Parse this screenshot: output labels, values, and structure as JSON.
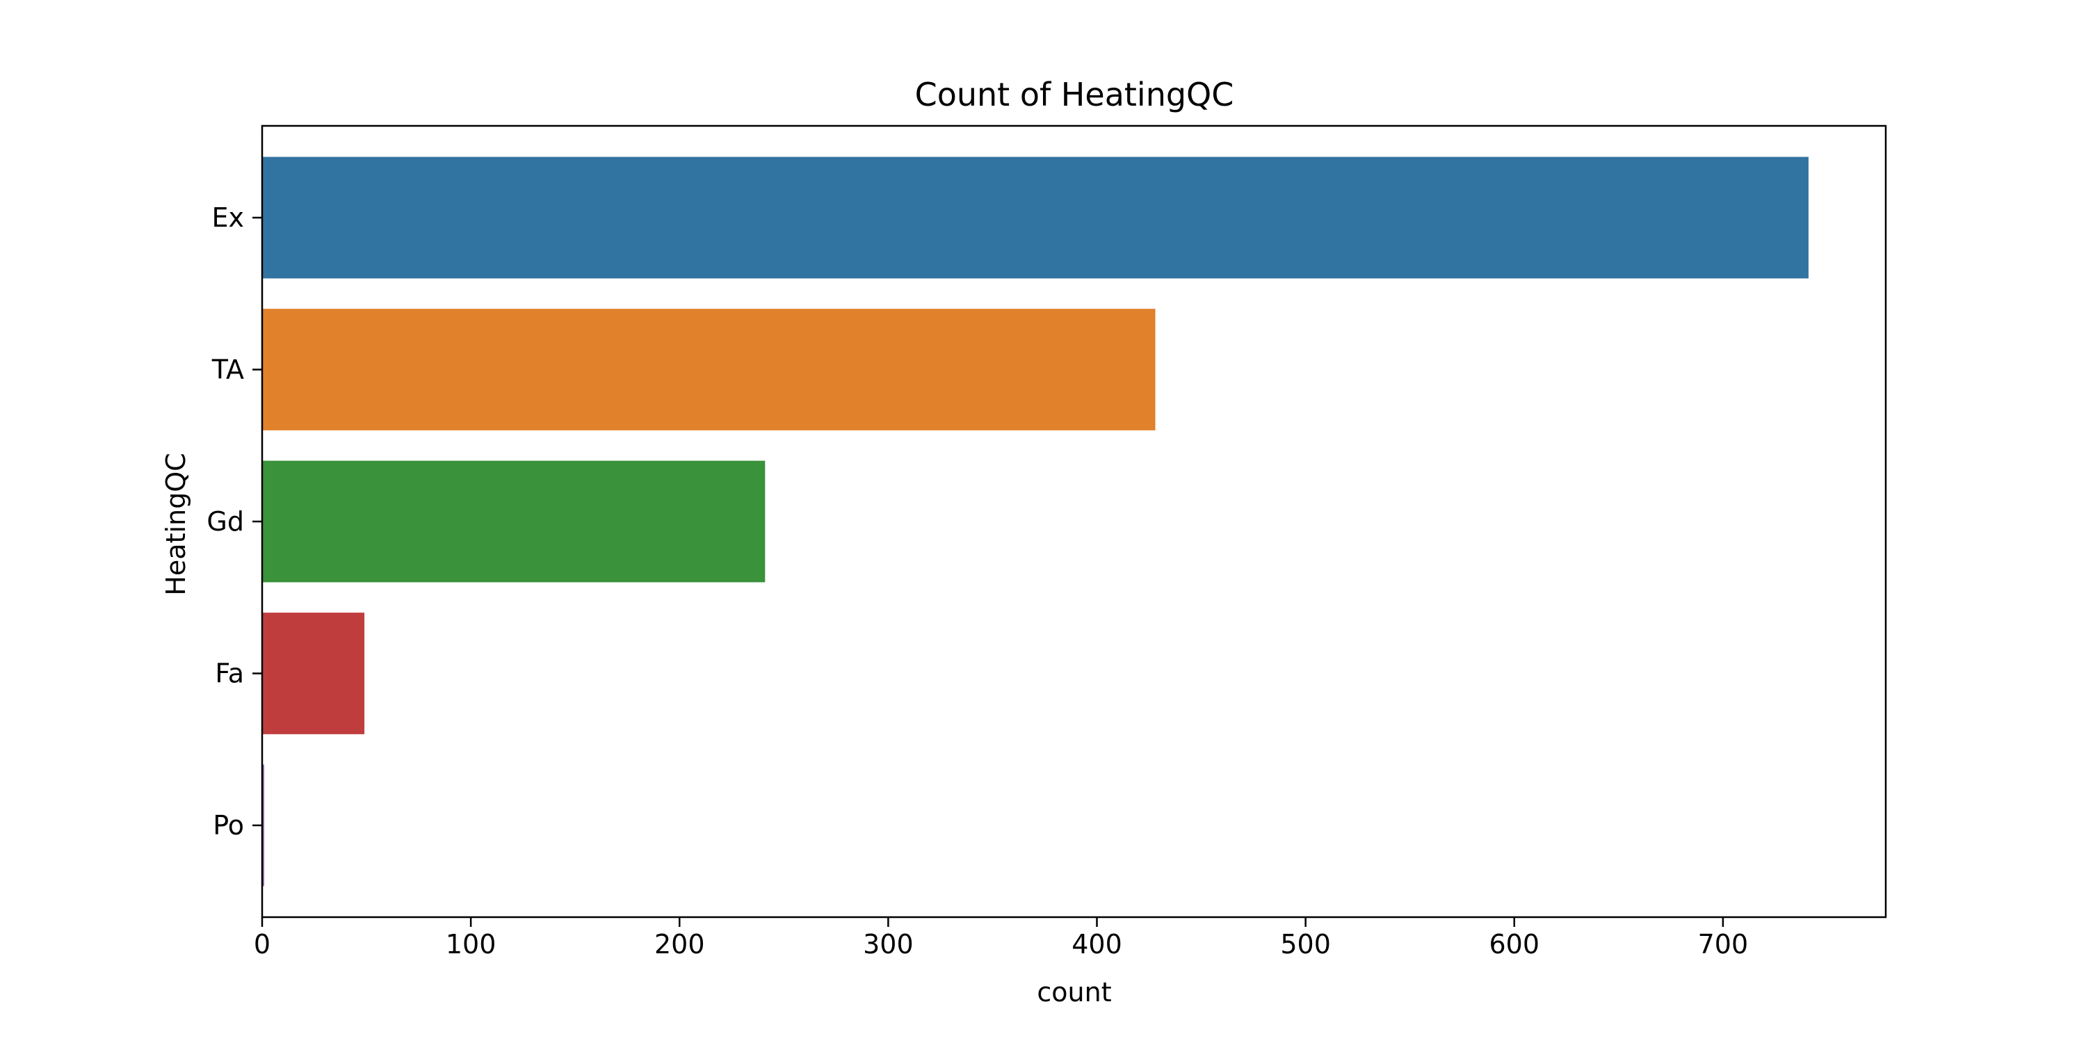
{
  "chart_data": {
    "type": "bar",
    "orientation": "horizontal",
    "title": "Count of HeatingQC",
    "xlabel": "count",
    "ylabel": "HeatingQC",
    "categories": [
      "Ex",
      "TA",
      "Gd",
      "Fa",
      "Po"
    ],
    "values": [
      741,
      428,
      241,
      49,
      1
    ],
    "colors": [
      "#3274a1",
      "#e1812c",
      "#3a923a",
      "#c03d3e",
      "#9372b2"
    ],
    "xlim": [
      0,
      778
    ],
    "xticks": [
      0,
      100,
      200,
      300,
      400,
      500,
      600,
      700
    ],
    "grid": false,
    "legend": false
  }
}
